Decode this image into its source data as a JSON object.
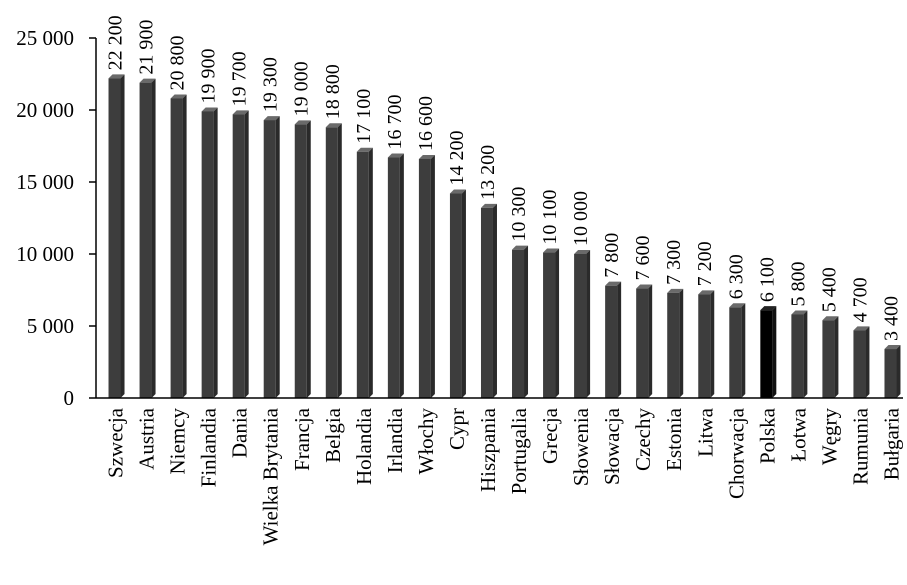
{
  "chart_data": {
    "type": "bar",
    "categories": [
      "Szwecja",
      "Austria",
      "Niemcy",
      "Finlandia",
      "Dania",
      "Wielka Brytania",
      "Francja",
      "Belgia",
      "Holandia",
      "Irlandia",
      "Włochy",
      "Cypr",
      "Hiszpania",
      "Portugalia",
      "Grecja",
      "Słowenia",
      "Słowacja",
      "Czechy",
      "Estonia",
      "Litwa",
      "Chorwacja",
      "Polska",
      "Łotwa",
      "Węgry",
      "Rumunia",
      "Bułgaria"
    ],
    "values": [
      22200,
      21900,
      20800,
      19900,
      19700,
      19300,
      19000,
      18800,
      17100,
      16700,
      16600,
      14200,
      13200,
      10300,
      10100,
      10000,
      7800,
      7600,
      7300,
      7200,
      6300,
      6100,
      5800,
      5400,
      4700,
      3400
    ],
    "value_labels": [
      "22 200",
      "21 900",
      "20 800",
      "19 900",
      "19 700",
      "19 300",
      "19 000",
      "18 800",
      "17 100",
      "16 700",
      "16 600",
      "14 200",
      "13 200",
      "10 300",
      "10 100",
      "10 000",
      "7 800",
      "7 600",
      "7 300",
      "7 200",
      "6 300",
      "6 100",
      "5 800",
      "5 400",
      "4 700",
      "3 400"
    ],
    "y_ticks": [
      0,
      5000,
      10000,
      15000,
      20000,
      25000
    ],
    "y_tick_labels": [
      "0",
      "5 000",
      "10 000",
      "15 000",
      "20 000",
      "25 000"
    ],
    "ylim": [
      0,
      25000
    ],
    "title": "",
    "xlabel": "",
    "ylabel": "",
    "grid": false,
    "legend": "none",
    "colors": {
      "bar": "#3d3d3d",
      "bar_highlight": "#000000",
      "bar_top": "#6a6a6a",
      "axis": "#000000"
    },
    "highlight_category": "Polska"
  }
}
